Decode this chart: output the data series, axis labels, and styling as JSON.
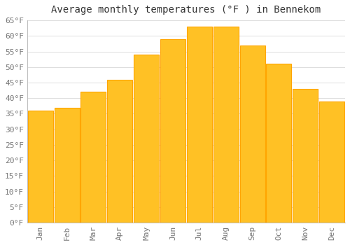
{
  "title": "Average monthly temperatures (°F ) in Bennekom",
  "months": [
    "Jan",
    "Feb",
    "Mar",
    "Apr",
    "May",
    "Jun",
    "Jul",
    "Aug",
    "Sep",
    "Oct",
    "Nov",
    "Dec"
  ],
  "values": [
    36,
    37,
    42,
    46,
    54,
    59,
    63,
    63,
    57,
    51,
    43,
    39
  ],
  "bar_color_face": "#FFC125",
  "bar_color_edge": "#FFA500",
  "background_color": "#FFFFFF",
  "grid_color": "#DDDDDD",
  "ylim": [
    0,
    65
  ],
  "ytick_step": 5,
  "title_fontsize": 10,
  "tick_fontsize": 8,
  "bar_width": 0.95
}
